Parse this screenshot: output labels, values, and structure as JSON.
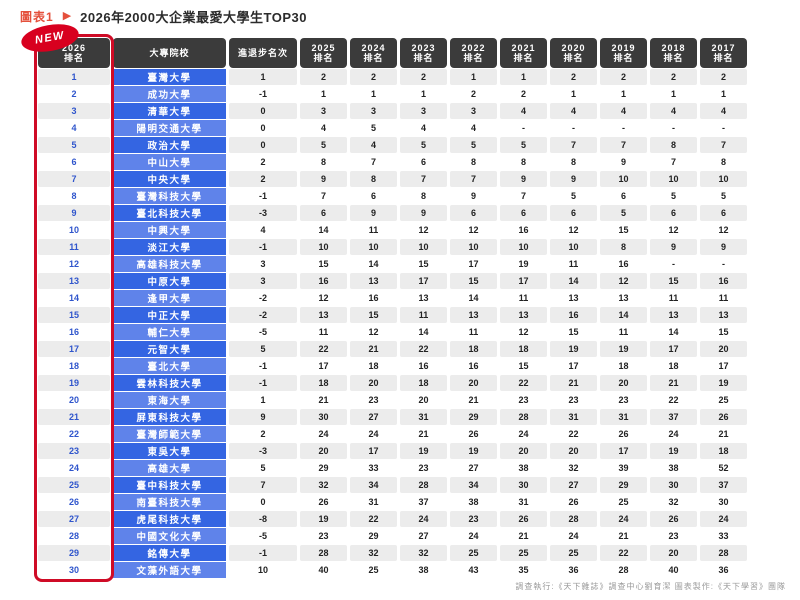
{
  "header": {
    "tag": "圖表1",
    "arrow": "▶",
    "title": "2026年2000大企業最愛大學生TOP30",
    "badge": "NEW"
  },
  "footer": {
    "credit": "調查執行:《天下雜誌》調查中心劉育潔 圖表製作:《天下學習》團隊"
  },
  "colors": {
    "accent_red": "#cf0b26",
    "badge_red": "#d8001f",
    "title_orange": "#e4503c",
    "header_dark": "#3b3b3b",
    "name_blue_dark": "#3465e2",
    "name_blue_light": "#5f83ea",
    "rank_blue": "#2f55cc",
    "row_shade_gray": "#ececec"
  },
  "chart_data": {
    "type": "table",
    "title": "2026年2000大企業最愛大學生TOP30",
    "columns": [
      {
        "top": "2026",
        "bottom": "排名"
      },
      {
        "top": "大專院校",
        "bottom": ""
      },
      {
        "top": "進退步名次",
        "bottom": ""
      },
      {
        "top": "2025",
        "bottom": "排名"
      },
      {
        "top": "2024",
        "bottom": "排名"
      },
      {
        "top": "2023",
        "bottom": "排名"
      },
      {
        "top": "2022",
        "bottom": "排名"
      },
      {
        "top": "2021",
        "bottom": "排名"
      },
      {
        "top": "2020",
        "bottom": "排名"
      },
      {
        "top": "2019",
        "bottom": "排名"
      },
      {
        "top": "2018",
        "bottom": "排名"
      },
      {
        "top": "2017",
        "bottom": "排名"
      }
    ],
    "rows": [
      {
        "rank": "1",
        "name": "臺灣大學",
        "change": "1",
        "history": [
          "2",
          "2",
          "2",
          "1",
          "1",
          "2",
          "2",
          "2",
          "2"
        ]
      },
      {
        "rank": "2",
        "name": "成功大學",
        "change": "-1",
        "history": [
          "1",
          "1",
          "1",
          "2",
          "2",
          "1",
          "1",
          "1",
          "1"
        ]
      },
      {
        "rank": "3",
        "name": "清華大學",
        "change": "0",
        "history": [
          "3",
          "3",
          "3",
          "3",
          "4",
          "4",
          "4",
          "4",
          "4"
        ]
      },
      {
        "rank": "4",
        "name": "陽明交通大學",
        "change": "0",
        "history": [
          "4",
          "5",
          "4",
          "4",
          "-",
          "-",
          "-",
          "-",
          "-"
        ]
      },
      {
        "rank": "5",
        "name": "政治大學",
        "change": "0",
        "history": [
          "5",
          "4",
          "5",
          "5",
          "5",
          "7",
          "7",
          "8",
          "7"
        ]
      },
      {
        "rank": "6",
        "name": "中山大學",
        "change": "2",
        "history": [
          "8",
          "7",
          "6",
          "8",
          "8",
          "8",
          "9",
          "7",
          "8"
        ]
      },
      {
        "rank": "7",
        "name": "中央大學",
        "change": "2",
        "history": [
          "9",
          "8",
          "7",
          "7",
          "9",
          "9",
          "10",
          "10",
          "10"
        ]
      },
      {
        "rank": "8",
        "name": "臺灣科技大學",
        "change": "-1",
        "history": [
          "7",
          "6",
          "8",
          "9",
          "7",
          "5",
          "6",
          "5",
          "5"
        ]
      },
      {
        "rank": "9",
        "name": "臺北科技大學",
        "change": "-3",
        "history": [
          "6",
          "9",
          "9",
          "6",
          "6",
          "6",
          "5",
          "6",
          "6"
        ]
      },
      {
        "rank": "10",
        "name": "中興大學",
        "change": "4",
        "history": [
          "14",
          "11",
          "12",
          "12",
          "16",
          "12",
          "15",
          "12",
          "12"
        ]
      },
      {
        "rank": "11",
        "name": "淡江大學",
        "change": "-1",
        "history": [
          "10",
          "10",
          "10",
          "10",
          "10",
          "10",
          "8",
          "9",
          "9"
        ]
      },
      {
        "rank": "12",
        "name": "高雄科技大學",
        "change": "3",
        "history": [
          "15",
          "14",
          "15",
          "17",
          "19",
          "11",
          "16",
          "-",
          "-"
        ]
      },
      {
        "rank": "13",
        "name": "中原大學",
        "change": "3",
        "history": [
          "16",
          "13",
          "17",
          "15",
          "17",
          "14",
          "12",
          "15",
          "16"
        ]
      },
      {
        "rank": "14",
        "name": "逢甲大學",
        "change": "-2",
        "history": [
          "12",
          "16",
          "13",
          "14",
          "11",
          "13",
          "13",
          "11",
          "11"
        ]
      },
      {
        "rank": "15",
        "name": "中正大學",
        "change": "-2",
        "history": [
          "13",
          "15",
          "11",
          "13",
          "13",
          "16",
          "14",
          "13",
          "13"
        ]
      },
      {
        "rank": "16",
        "name": "輔仁大學",
        "change": "-5",
        "history": [
          "11",
          "12",
          "14",
          "11",
          "12",
          "15",
          "11",
          "14",
          "15"
        ]
      },
      {
        "rank": "17",
        "name": "元智大學",
        "change": "5",
        "history": [
          "22",
          "21",
          "22",
          "18",
          "18",
          "19",
          "19",
          "17",
          "20"
        ]
      },
      {
        "rank": "18",
        "name": "臺北大學",
        "change": "-1",
        "history": [
          "17",
          "18",
          "16",
          "16",
          "15",
          "17",
          "18",
          "18",
          "17"
        ]
      },
      {
        "rank": "19",
        "name": "雲林科技大學",
        "change": "-1",
        "history": [
          "18",
          "20",
          "18",
          "20",
          "22",
          "21",
          "20",
          "21",
          "19"
        ]
      },
      {
        "rank": "20",
        "name": "東海大學",
        "change": "1",
        "history": [
          "21",
          "23",
          "20",
          "21",
          "23",
          "23",
          "23",
          "22",
          "25"
        ]
      },
      {
        "rank": "21",
        "name": "屏東科技大學",
        "change": "9",
        "history": [
          "30",
          "27",
          "31",
          "29",
          "28",
          "31",
          "31",
          "37",
          "26"
        ]
      },
      {
        "rank": "22",
        "name": "臺灣師範大學",
        "change": "2",
        "history": [
          "24",
          "24",
          "21",
          "26",
          "24",
          "22",
          "26",
          "24",
          "21"
        ]
      },
      {
        "rank": "23",
        "name": "東吳大學",
        "change": "-3",
        "history": [
          "20",
          "17",
          "19",
          "19",
          "20",
          "20",
          "17",
          "19",
          "18"
        ]
      },
      {
        "rank": "24",
        "name": "高雄大學",
        "change": "5",
        "history": [
          "29",
          "33",
          "23",
          "27",
          "38",
          "32",
          "39",
          "38",
          "52"
        ]
      },
      {
        "rank": "25",
        "name": "臺中科技大學",
        "change": "7",
        "history": [
          "32",
          "34",
          "28",
          "34",
          "30",
          "27",
          "29",
          "30",
          "37"
        ]
      },
      {
        "rank": "26",
        "name": "南臺科技大學",
        "change": "0",
        "history": [
          "26",
          "31",
          "37",
          "38",
          "31",
          "26",
          "25",
          "32",
          "30"
        ]
      },
      {
        "rank": "27",
        "name": "虎尾科技大學",
        "change": "-8",
        "history": [
          "19",
          "22",
          "24",
          "23",
          "26",
          "28",
          "24",
          "26",
          "24"
        ]
      },
      {
        "rank": "28",
        "name": "中國文化大學",
        "change": "-5",
        "history": [
          "23",
          "29",
          "27",
          "24",
          "21",
          "24",
          "21",
          "23",
          "33"
        ]
      },
      {
        "rank": "29",
        "name": "銘傳大學",
        "change": "-1",
        "history": [
          "28",
          "32",
          "32",
          "25",
          "25",
          "25",
          "22",
          "20",
          "28"
        ]
      },
      {
        "rank": "30",
        "name": "文藻外語大學",
        "change": "10",
        "history": [
          "40",
          "25",
          "38",
          "43",
          "35",
          "36",
          "28",
          "40",
          "36"
        ]
      }
    ]
  }
}
